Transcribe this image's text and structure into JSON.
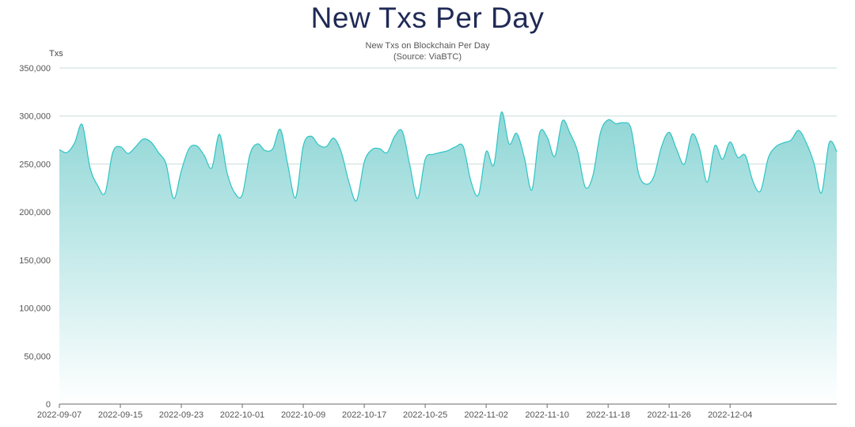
{
  "chart_data": {
    "type": "area",
    "title": "New Txs Per Day",
    "subtitle_line1": "New Txs on Blockchain Per Day",
    "subtitle_line2": "(Source: ViaBTC)",
    "xlabel": "",
    "ylabel": "Txs",
    "ylim": [
      0,
      350000
    ],
    "yticks": [
      0,
      50000,
      100000,
      150000,
      200000,
      250000,
      300000,
      350000
    ],
    "ytick_labels": [
      "0",
      "50,000",
      "100,000",
      "150,000",
      "200,000",
      "250,000",
      "300,000",
      "350,000"
    ],
    "xtick_labels": [
      "2022-09-07",
      "2022-09-15",
      "2022-09-23",
      "2022-10-01",
      "2022-10-09",
      "2022-10-17",
      "2022-10-25",
      "2022-11-02",
      "2022-11-10",
      "2022-11-18",
      "2022-11-26",
      "2022-12-04"
    ],
    "grid": true,
    "line_color": "#2ec4c4",
    "fill_top_color": "#8fd6d6",
    "fill_bottom_color": "#ffffff",
    "series": [
      {
        "name": "New Txs",
        "start_date": "2022-09-07",
        "values": [
          265000,
          262000,
          272000,
          291000,
          247000,
          228000,
          220000,
          262000,
          268000,
          261000,
          268000,
          276000,
          273000,
          262000,
          250000,
          214000,
          243000,
          266000,
          269000,
          259000,
          246000,
          281000,
          241000,
          220000,
          218000,
          260000,
          271000,
          264000,
          266000,
          286000,
          248000,
          215000,
          269000,
          279000,
          270000,
          268000,
          277000,
          262000,
          231000,
          212000,
          252000,
          265000,
          266000,
          262000,
          279000,
          284000,
          248000,
          214000,
          255000,
          260000,
          262000,
          264000,
          268000,
          268000,
          232000,
          218000,
          263000,
          249000,
          304000,
          271000,
          282000,
          257000,
          223000,
          282000,
          278000,
          258000,
          295000,
          282000,
          263000,
          226000,
          238000,
          283000,
          296000,
          292000,
          293000,
          287000,
          240000,
          229000,
          237000,
          268000,
          283000,
          265000,
          250000,
          281000,
          266000,
          231000,
          269000,
          255000,
          273000,
          257000,
          259000,
          232000,
          222000,
          256000,
          268000,
          272000,
          275000,
          285000,
          272000,
          251000,
          220000,
          272000,
          263000
        ]
      }
    ]
  }
}
